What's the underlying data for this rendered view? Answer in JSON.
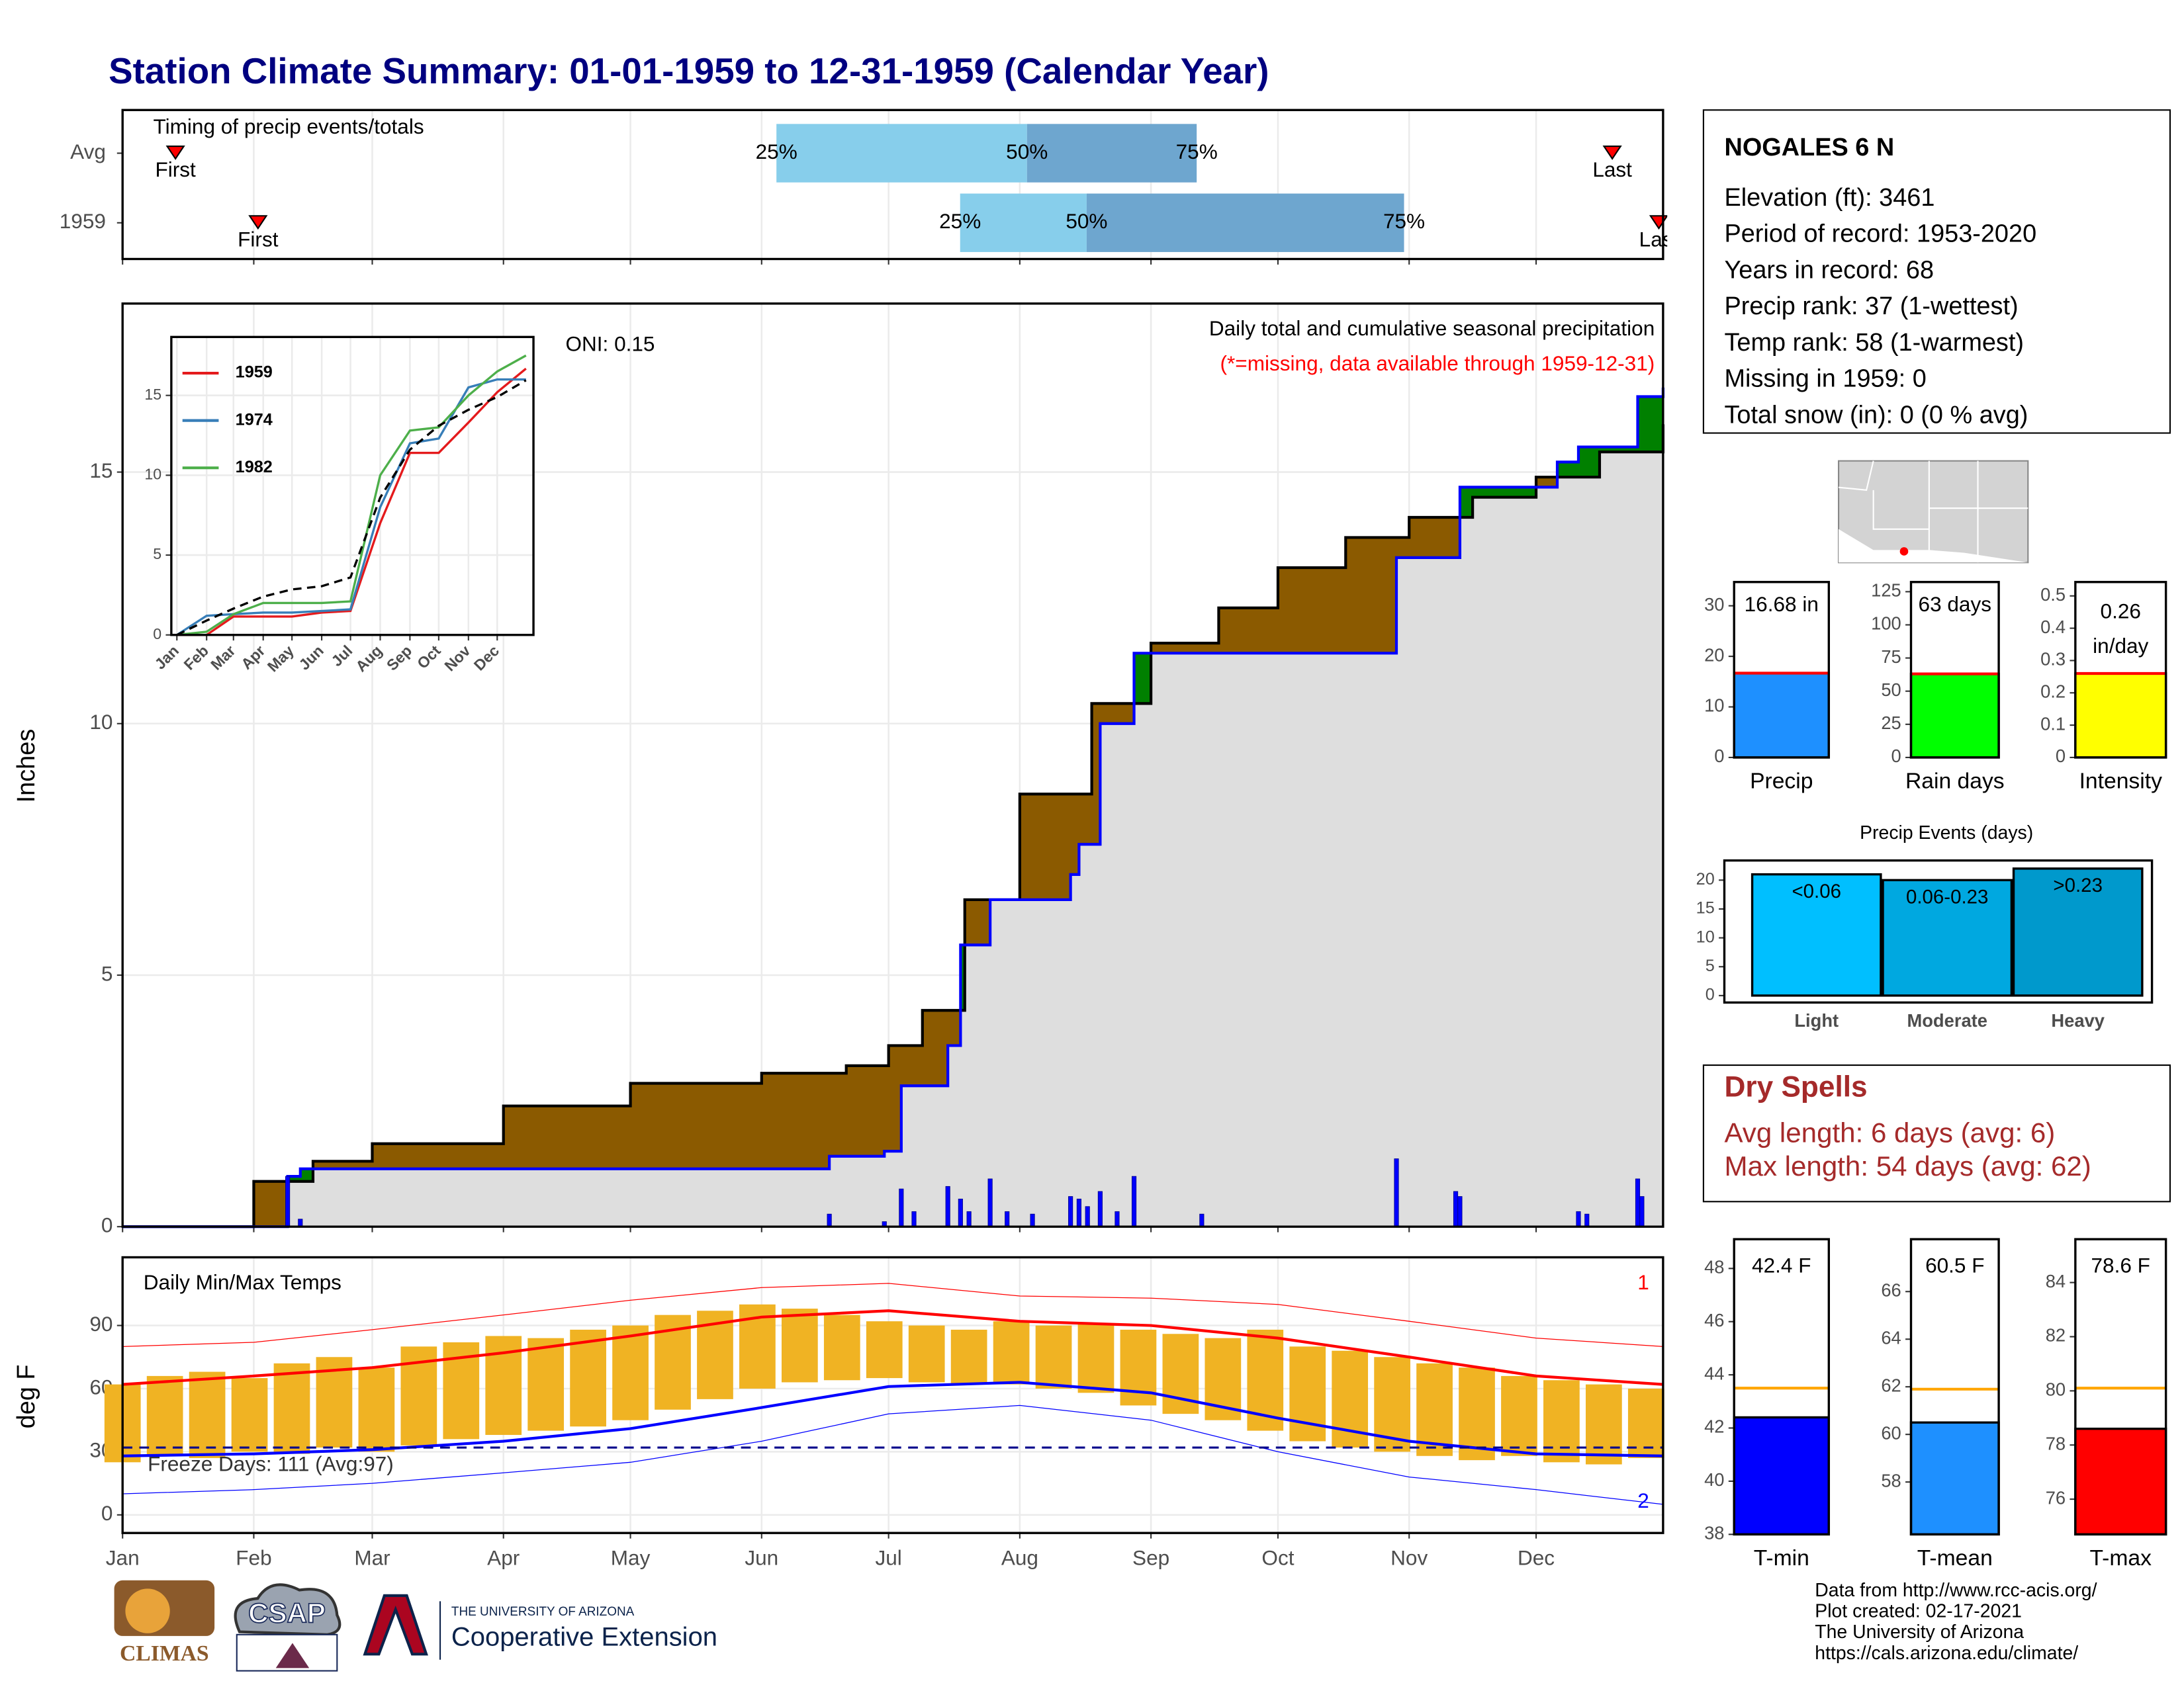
{
  "title": "Station Climate Summary: 01-01-1959 to 12-31-1959 (Calendar Year)",
  "station_info": {
    "name": "NOGALES 6 N",
    "lines": [
      "Elevation (ft): 3461",
      "Period of record: 1953-2020",
      "Years in record: 68",
      "Precip rank: 37 (1-wettest)",
      "Temp rank: 58 (1-warmest)",
      "Missing in 1959: 0",
      "Total snow (in): 0 (0 % avg)"
    ]
  },
  "dry_spells": {
    "title": "Dry Spells",
    "lines": [
      "Avg length: 6 days (avg: 6)",
      "Max length: 54 days (avg: 62)"
    ]
  },
  "footer": [
    "Data from http://www.rcc-acis.org/",
    "Plot created: 02-17-2021",
    "The University of Arizona",
    "https://cals.arizona.edu/climate/"
  ],
  "logos": {
    "climas": "CLIMAS",
    "csap": "CSAP",
    "university": "THE UNIVERSITY OF ARIZONA",
    "extension": "Cooperative Extension"
  },
  "chart_data": [
    {
      "type": "timing",
      "title": "Timing of precip events/totals",
      "first_label": "First",
      "last_label": "Last",
      "q_labels": [
        "25%",
        "50%",
        "75%"
      ],
      "colors": [
        "#87ceeb",
        "#6ea6cf"
      ],
      "marker_color": "#ff0000",
      "rows": [
        {
          "name": "Avg",
          "first": 13.5,
          "last": 353,
          "q25": 155.5,
          "q50": 214.7,
          "q75": 254.8
        },
        {
          "name": "1959",
          "first": 33,
          "last": 364,
          "q25": 198.9,
          "q50": 228.8,
          "q75": 303.8
        }
      ],
      "xlim": [
        1,
        365
      ],
      "xticks": [
        1,
        32,
        60,
        91,
        121,
        152,
        182,
        213,
        244,
        274,
        305,
        335
      ],
      "grid": true
    },
    {
      "type": "cumulative",
      "ylabel": "Inches",
      "annotations": [
        "Daily total and cumulative seasonal precipitation",
        "(*=missing, data available through 1959-12-31)"
      ],
      "oni": "ONI: 0.15",
      "xlim": [
        1,
        365
      ],
      "ylim": [
        0,
        18.35
      ],
      "xticks": [
        1,
        32,
        60,
        91,
        121,
        152,
        182,
        213,
        244,
        274,
        305,
        335
      ],
      "yticks": [
        0,
        5,
        10,
        15
      ],
      "grid": true,
      "below_color": "#8b5a00",
      "above_color": "#008000",
      "fill": "#dedede",
      "series": [
        {
          "color": "#000000",
          "x": [
            1,
            32,
            46,
            60,
            91,
            121,
            152,
            172,
            182,
            190,
            200,
            213,
            230,
            244,
            260,
            274,
            290,
            305,
            320,
            335,
            350,
            365
          ],
          "values": [
            0,
            0.9,
            1.3,
            1.65,
            2.4,
            2.85,
            3.05,
            3.2,
            3.6,
            4.3,
            6.5,
            8.6,
            10.4,
            11.6,
            12.3,
            13.1,
            13.7,
            14.1,
            14.5,
            14.9,
            15.4,
            15.95
          ]
        },
        {
          "color": "#0000ff",
          "x": [
            1,
            40,
            43,
            168,
            181,
            185,
            196,
            199,
            206,
            225,
            227,
            232,
            240,
            302,
            317,
            340,
            345,
            359,
            365
          ],
          "values": [
            0,
            1.0,
            1.15,
            1.4,
            1.5,
            2.8,
            3.6,
            5.6,
            6.5,
            7.0,
            7.6,
            10.0,
            11.4,
            13.3,
            14.7,
            15.2,
            15.5,
            16.5,
            16.68
          ]
        }
      ],
      "daily": {
        "color": "#0000ff",
        "x": [
          40,
          43,
          168,
          181,
          185,
          188,
          196,
          199,
          201,
          206,
          210,
          216,
          225,
          227,
          229,
          232,
          236,
          240,
          256,
          302,
          316,
          317,
          345,
          347,
          359,
          360
        ],
        "values": [
          1.0,
          0.15,
          0.25,
          0.1,
          0.75,
          0.3,
          0.8,
          0.55,
          0.3,
          0.95,
          0.3,
          0.25,
          0.6,
          0.55,
          0.4,
          0.7,
          0.3,
          1.0,
          0.25,
          1.35,
          0.7,
          0.6,
          0.3,
          0.25,
          0.95,
          0.6
        ]
      }
    },
    {
      "type": "line",
      "xlim": [
        -4.8,
        372.8
      ],
      "ylim": [
        0,
        18.66
      ],
      "yticks": [
        0,
        5,
        10,
        15
      ],
      "xticks": [
        {
          "value": 1,
          "label": "Jan"
        },
        {
          "value": 32,
          "label": "Feb"
        },
        {
          "value": 60,
          "label": "Mar"
        },
        {
          "value": 91,
          "label": "Apr"
        },
        {
          "value": 121,
          "label": "May"
        },
        {
          "value": 152,
          "label": "Jun"
        },
        {
          "value": 182,
          "label": "Jul"
        },
        {
          "value": 213,
          "label": "Aug"
        },
        {
          "value": 244,
          "label": "Sep"
        },
        {
          "value": 274,
          "label": "Oct"
        },
        {
          "value": 305,
          "label": "Nov"
        },
        {
          "value": 335,
          "label": "Dec"
        }
      ],
      "x": [
        1,
        32,
        60,
        91,
        121,
        152,
        182,
        213,
        244,
        274,
        305,
        335,
        365
      ],
      "grid": true,
      "series": [
        {
          "name": "1959",
          "color": "#e41a1c",
          "values": [
            0,
            0,
            1.15,
            1.15,
            1.15,
            1.4,
            1.5,
            7.0,
            11.4,
            11.4,
            13.3,
            15.2,
            16.68
          ]
        },
        {
          "name": "1974",
          "color": "#377eb8",
          "values": [
            0,
            1.2,
            1.3,
            1.4,
            1.4,
            1.5,
            1.6,
            8,
            12,
            12.3,
            15.5,
            16,
            16
          ]
        },
        {
          "name": "1982",
          "color": "#4daf4a",
          "values": [
            0,
            0.2,
            1.3,
            2,
            2,
            2,
            2.1,
            10,
            12.8,
            13,
            15,
            16.5,
            17.5
          ]
        },
        {
          "color": "#000000",
          "dash": true,
          "values": [
            0,
            0.9,
            1.65,
            2.4,
            2.85,
            3.05,
            3.6,
            8.6,
            11.6,
            13.1,
            14.1,
            14.9,
            15.95
          ]
        }
      ]
    },
    {
      "type": "temperature",
      "title": "Daily Min/Max Temps",
      "ylabel": "deg F",
      "freeze_label": "Freeze Days: 111 (Avg:97)",
      "corner_labels": [
        "1",
        "2"
      ],
      "xlim": [
        1,
        365
      ],
      "ylim": [
        -8.6,
        122.4
      ],
      "yticks": [
        0,
        30,
        60,
        90
      ],
      "grid": true,
      "freeze": 32,
      "xticks": [
        {
          "value": 1,
          "label": "Jan"
        },
        {
          "value": 32,
          "label": "Feb"
        },
        {
          "value": 60,
          "label": "Mar"
        },
        {
          "value": 91,
          "label": "Apr"
        },
        {
          "value": 121,
          "label": "May"
        },
        {
          "value": 152,
          "label": "Jun"
        },
        {
          "value": 182,
          "label": "Jul"
        },
        {
          "value": 213,
          "label": "Aug"
        },
        {
          "value": 244,
          "label": "Sep"
        },
        {
          "value": 274,
          "label": "Oct"
        },
        {
          "value": 305,
          "label": "Nov"
        },
        {
          "value": 335,
          "label": "Dec"
        }
      ],
      "x": [
        1,
        32,
        60,
        91,
        121,
        152,
        182,
        213,
        244,
        274,
        305,
        335,
        365
      ],
      "series": [
        {
          "color": "#ff0000",
          "width": 0.6,
          "values": [
            80,
            82,
            88,
            95,
            102,
            108,
            110,
            104,
            103,
            100,
            92,
            84,
            80
          ]
        },
        {
          "color": "#ff0000",
          "width": 2,
          "values": [
            62,
            66,
            70,
            77,
            85,
            94,
            97,
            92,
            90,
            84,
            75,
            66,
            62
          ]
        },
        {
          "color": "#0000ff",
          "width": 2,
          "values": [
            28,
            29,
            31,
            35,
            41,
            51,
            61,
            63,
            58,
            46,
            35,
            29,
            28
          ]
        },
        {
          "color": "#0000ff",
          "width": 0.6,
          "values": [
            10,
            12,
            15,
            20,
            25,
            35,
            48,
            52,
            45,
            30,
            18,
            12,
            5
          ]
        }
      ],
      "daily": {
        "color": "#f0b323",
        "x": [
          1,
          11,
          21,
          31,
          41,
          51,
          61,
          71,
          81,
          91,
          101,
          111,
          121,
          131,
          141,
          151,
          161,
          171,
          181,
          191,
          201,
          211,
          221,
          231,
          241,
          251,
          261,
          271,
          281,
          291,
          301,
          311,
          321,
          331,
          341,
          351,
          361
        ],
        "max": [
          62,
          66,
          68,
          65,
          72,
          75,
          70,
          80,
          82,
          85,
          84,
          88,
          90,
          95,
          97,
          100,
          98,
          95,
          92,
          90,
          88,
          92,
          90,
          91,
          88,
          86,
          84,
          88,
          80,
          78,
          75,
          72,
          70,
          66,
          64,
          62,
          60
        ],
        "min": [
          25,
          28,
          27,
          30,
          29,
          32,
          30,
          33,
          36,
          38,
          40,
          42,
          45,
          50,
          55,
          60,
          63,
          64,
          65,
          63,
          62,
          62,
          60,
          58,
          52,
          48,
          45,
          40,
          35,
          32,
          30,
          28,
          26,
          28,
          25,
          24,
          27
        ]
      }
    },
    {
      "type": "bar",
      "label": "Precip",
      "value": 16.68,
      "value_label": "16.68 in",
      "color": "#1e90ff",
      "line_color": "#ff0000",
      "ylim": [
        0,
        34.7
      ],
      "yticks": [
        0,
        10,
        20,
        30
      ]
    },
    {
      "type": "bar",
      "label": "Rain days",
      "value": 63,
      "value_label": "63 days",
      "color": "#00ff00",
      "line_color": "#ff0000",
      "ylim": [
        0,
        132.3
      ],
      "yticks": [
        0,
        25,
        50,
        75,
        100,
        125
      ]
    },
    {
      "type": "bar",
      "label": "Intensity",
      "value": 0.26,
      "value_label": "0.26",
      "unit": "in/day",
      "color": "#ffff00",
      "line_color": "#ff0000",
      "ylim": [
        0,
        0.543
      ],
      "yticks": [
        0,
        0.1,
        0.2,
        0.3,
        0.4,
        0.5
      ]
    },
    {
      "type": "bars",
      "title": "Precip Events (days)",
      "categories": [
        "Light",
        "Moderate",
        "Heavy"
      ],
      "values": [
        21,
        20,
        22
      ],
      "value_labels": [
        "<0.06",
        "0.06-0.23",
        ">0.23"
      ],
      "colors": [
        "#00bfff",
        "#00a8e0",
        "#0099cc"
      ],
      "ylim": [
        -1.2,
        23.4
      ],
      "yticks": [
        0,
        5,
        10,
        15,
        20
      ]
    },
    {
      "type": "bar",
      "label": "T-min",
      "value": 42.4,
      "value_label": "42.4 F",
      "color": "#0000ff",
      "avg": 43.5,
      "avg_color": "#ffa500",
      "ylim": [
        38,
        49.1
      ],
      "yticks": [
        38,
        40,
        42,
        44,
        46,
        48
      ]
    },
    {
      "type": "bar",
      "label": "T-mean",
      "value": 60.5,
      "value_label": "60.5 F",
      "color": "#1e90ff",
      "avg": 61.9,
      "avg_color": "#ffa500",
      "ylim": [
        55.8,
        68.2
      ],
      "yticks": [
        58,
        60,
        62,
        64,
        66
      ]
    },
    {
      "type": "bar",
      "label": "T-max",
      "value": 78.6,
      "value_label": "78.6 F",
      "color": "#ff0000",
      "avg": 80.1,
      "avg_color": "#ffa500",
      "ylim": [
        74.7,
        85.6
      ],
      "yticks": [
        76,
        78,
        80,
        82,
        84
      ]
    }
  ]
}
